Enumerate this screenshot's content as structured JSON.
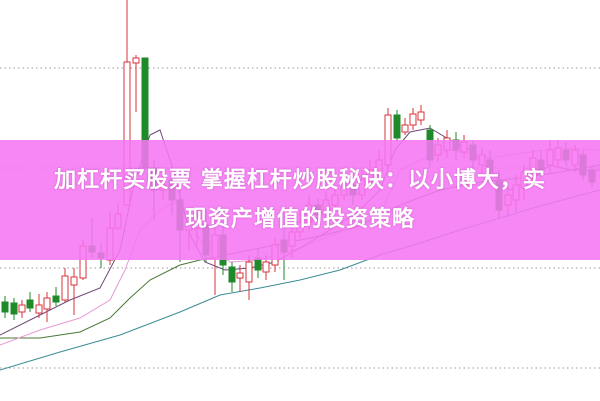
{
  "article": {
    "title_line1": "加杠杆买股票 掌握杠杆炒股秘诀：以小博大，实",
    "title_line2": "现资产增值的投资策略"
  },
  "colors": {
    "banner": "#f676f4",
    "up_candle": "#d9333c",
    "down_candle": "#1e8a2a",
    "grid": "#9a9a9a"
  },
  "chart_image": {
    "type": "candlestick",
    "moving_average_lines": 4,
    "grid": "dotted horizontal"
  }
}
